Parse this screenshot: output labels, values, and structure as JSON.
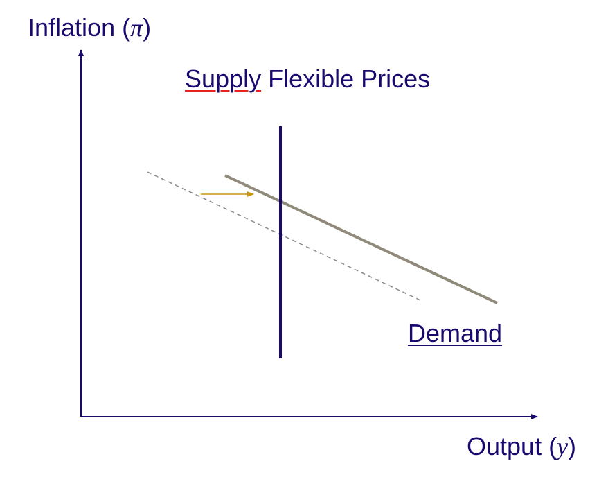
{
  "y_axis": {
    "label": "Inflation (",
    "symbol": "π",
    "close": ")"
  },
  "x_axis": {
    "label": "Output (",
    "symbol": "y",
    "close": ")"
  },
  "supply": {
    "word1": "Supply",
    "rest": " Flexible Prices"
  },
  "demand": {
    "label": "Demand"
  },
  "colors": {
    "text": "#1a0a6e",
    "axis": "#1a0a6e",
    "supply_line": "#1a0a6e",
    "demand_line": "#8f8a7a",
    "old_demand_dashed": "#8a8a8a",
    "shift_arrow": "#c8960c",
    "spell_underline": "#e8231f"
  }
}
